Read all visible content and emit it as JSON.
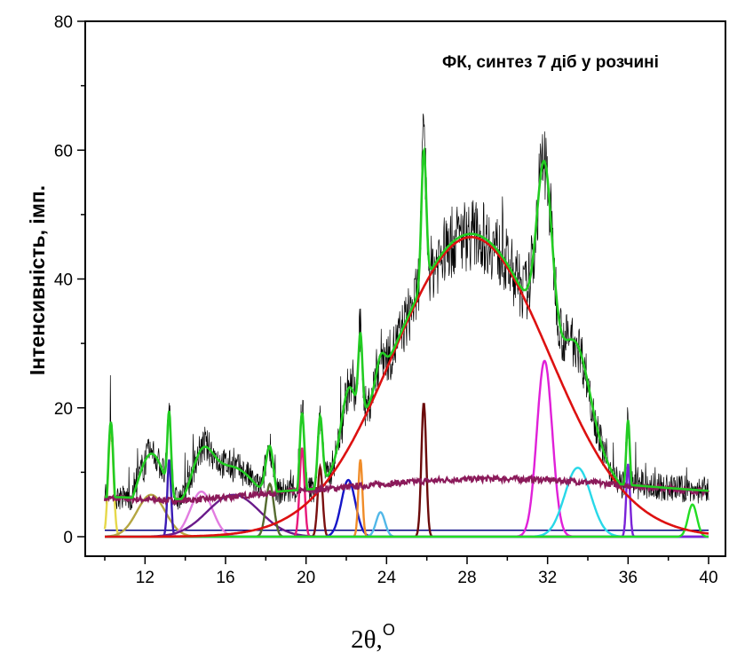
{
  "chart_data": {
    "type": "line",
    "title": "ФК, синтез 7 діб у розчині",
    "ylabel": "Інтенсивність, імп.",
    "xlabel": "2θ,",
    "xlabel_superscript": "O",
    "xlim": [
      10,
      40
    ],
    "ylim": [
      0,
      80
    ],
    "x_ticks": [
      12,
      16,
      20,
      24,
      28,
      32,
      36,
      40
    ],
    "x_tick_labels": [
      "12",
      "16",
      "20",
      "24",
      "28",
      "32",
      "36",
      "40"
    ],
    "y_ticks": [
      0,
      20,
      40,
      60,
      80
    ],
    "y_tick_labels": [
      "0",
      "20",
      "40",
      "60",
      "80"
    ],
    "grid": false,
    "legend": "none",
    "baseline": 1.0,
    "colors": {
      "raw": "#000000",
      "fit": "#22cc22",
      "amorphous": "#dd1111",
      "background": "#8b1a5a",
      "baseline": "#000080"
    },
    "series": [
      {
        "x": 28.2,
        "height": 46.5,
        "width": 3.9,
        "color": "#dd1111",
        "role": "amorphous"
      },
      {
        "x": 10.3,
        "height": 17.0,
        "width": 0.13,
        "color": "#e6d84a",
        "role": "peak"
      },
      {
        "x": 12.3,
        "height": 6.5,
        "width": 0.7,
        "color": "#b5a642",
        "role": "peak"
      },
      {
        "x": 13.2,
        "height": 12.0,
        "width": 0.09,
        "color": "#3b1bb5",
        "role": "peak"
      },
      {
        "x": 14.8,
        "height": 7.0,
        "width": 0.55,
        "color": "#e27ce0",
        "role": "peak"
      },
      {
        "x": 16.4,
        "height": 6.5,
        "width": 1.3,
        "color": "#6a1b8a",
        "role": "peak"
      },
      {
        "x": 18.2,
        "height": 8.2,
        "width": 0.2,
        "color": "#556b2f",
        "role": "peak"
      },
      {
        "x": 19.8,
        "height": 13.8,
        "width": 0.12,
        "color": "#e8197a",
        "role": "peak"
      },
      {
        "x": 20.7,
        "height": 10.8,
        "width": 0.12,
        "color": "#7b1010",
        "role": "peak"
      },
      {
        "x": 22.1,
        "height": 8.8,
        "width": 0.35,
        "color": "#1515c8",
        "role": "peak"
      },
      {
        "x": 22.7,
        "height": 12.0,
        "width": 0.1,
        "color": "#f08c28",
        "role": "peak"
      },
      {
        "x": 23.7,
        "height": 3.8,
        "width": 0.22,
        "color": "#52b8e8",
        "role": "peak"
      },
      {
        "x": 25.85,
        "height": 20.8,
        "width": 0.12,
        "color": "#6b0a0a",
        "role": "peak"
      },
      {
        "x": 31.85,
        "height": 27.3,
        "width": 0.38,
        "color": "#e020d8",
        "role": "peak"
      },
      {
        "x": 33.5,
        "height": 10.7,
        "width": 0.65,
        "color": "#28d8e8",
        "role": "peak"
      },
      {
        "x": 36.0,
        "height": 11.3,
        "width": 0.09,
        "color": "#7a22d8",
        "role": "peak"
      },
      {
        "x": 39.2,
        "height": 5.0,
        "width": 0.22,
        "color": "#22dd22",
        "role": "peak"
      }
    ]
  }
}
